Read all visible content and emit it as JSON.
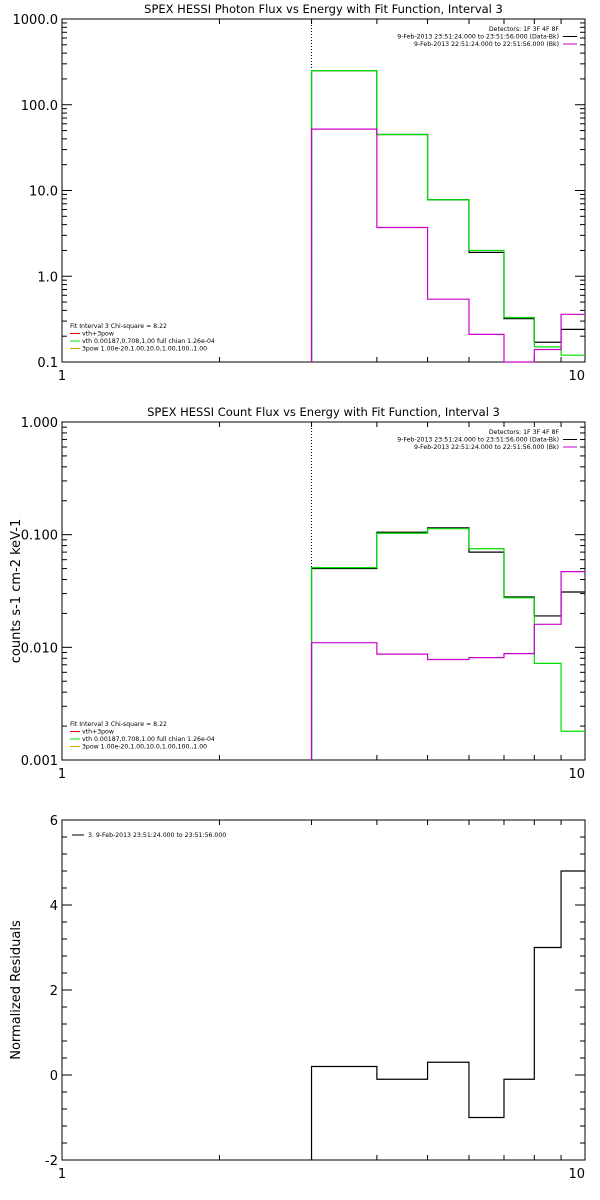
{
  "colors": {
    "black": "#000000",
    "green": "#00dd00",
    "magenta": "#cc00cc",
    "red": "#ee0000",
    "orange": "#ccaa00"
  },
  "chart_data": [
    {
      "type": "line",
      "step": true,
      "title": "SPEX HESSI Photon Flux vs Energy with Fit Function, Interval 3",
      "xscale": "log",
      "yscale": "log",
      "xlim": [
        1,
        10
      ],
      "ylim": [
        0.1,
        1000
      ],
      "xticks": [
        1,
        10
      ],
      "xtick_labels": [
        "1",
        "10"
      ],
      "yticks": [
        0.1,
        1,
        10,
        100,
        1000
      ],
      "ytick_labels": [
        "0.1",
        "1.0",
        "10.0",
        "100.0",
        "1000.0"
      ],
      "vline_x": 3.0,
      "bin_edges": [
        3.0,
        4.0,
        5.0,
        6.0,
        7.0,
        8.0,
        9.0,
        10.0
      ],
      "series": [
        {
          "color": "#000000",
          "values": [
            250,
            45,
            7.8,
            1.9,
            0.32,
            0.17,
            0.24
          ]
        },
        {
          "color": "#00dd00",
          "values": [
            250,
            45,
            7.8,
            2.0,
            0.33,
            0.15,
            0.12
          ]
        },
        {
          "color": "#cc00cc",
          "values": [
            52,
            3.7,
            0.54,
            0.21,
            0.1,
            0.14,
            0.36
          ]
        }
      ],
      "legend_top_right": {
        "lines": [
          {
            "text": "Detectors: 1F 3F 4F 8F",
            "color": ""
          },
          {
            "text": "9-Feb-2013 23:51:24.000 to 23:51:56.000 (Data-Bk)",
            "color": "#000000"
          },
          {
            "text": "9-Feb-2013 22:51:24.000 to 22:51:56.000 (Bk)",
            "color": "#cc00cc"
          }
        ]
      },
      "legend_bottom_left": {
        "lines": [
          {
            "text": "Fit Interval 3   Chi-square = 8.22",
            "color": ""
          },
          {
            "text": "vth+3pow",
            "color": "#ee0000"
          },
          {
            "text": "vth 0.00187,0.708,1.00  full chian 1.26e-04",
            "color": "#00dd00"
          },
          {
            "text": "3pow 1.00e-20,1.00,10.0,1.00,100.,1.00",
            "color": "#ccaa00"
          }
        ]
      }
    },
    {
      "type": "line",
      "step": true,
      "title": "SPEX HESSI Count Flux vs Energy with Fit Function, Interval 3",
      "ylabel": "counts s-1 cm-2 keV-1",
      "xscale": "log",
      "yscale": "log",
      "xlim": [
        1,
        10
      ],
      "ylim": [
        0.001,
        1
      ],
      "xticks": [
        1,
        10
      ],
      "xtick_labels": [
        "1",
        "10"
      ],
      "yticks": [
        0.001,
        0.01,
        0.1,
        1
      ],
      "ytick_labels": [
        "0.001",
        "0.010",
        "0.100",
        "1.000"
      ],
      "vline_x": 3.0,
      "bin_edges": [
        3.0,
        4.0,
        5.0,
        6.0,
        7.0,
        8.0,
        9.0,
        10.0
      ],
      "series": [
        {
          "color": "#000000",
          "values": [
            0.05,
            0.105,
            0.115,
            0.07,
            0.028,
            0.019,
            0.031
          ]
        },
        {
          "color": "#00dd00",
          "values": [
            0.051,
            0.103,
            0.113,
            0.075,
            0.0275,
            0.0072,
            0.0018
          ]
        },
        {
          "color": "#cc00cc",
          "values": [
            0.011,
            0.0087,
            0.0078,
            0.0081,
            0.0088,
            0.016,
            0.047
          ]
        }
      ],
      "legend_top_right": {
        "lines": [
          {
            "text": "Detectors: 1F 3F 4F 8F",
            "color": ""
          },
          {
            "text": "9-Feb-2013 23:51:24.000 to 23:51:56.000 (Data-Bk)",
            "color": "#000000"
          },
          {
            "text": "9-Feb-2013 22:51:24.000 to 22:51:56.000 (Bk)",
            "color": "#cc00cc"
          }
        ]
      },
      "legend_bottom_left": {
        "lines": [
          {
            "text": "Fit Interval 3   Chi-square = 8.22",
            "color": ""
          },
          {
            "text": "vth+3pow",
            "color": "#ee0000"
          },
          {
            "text": "vth 0.00187,0.708,1.00  full chian 1.26e-04",
            "color": "#00dd00"
          },
          {
            "text": "3pow 1.00e-20,1.00,10.0,1.00,100.,1.00",
            "color": "#ccaa00"
          }
        ]
      }
    },
    {
      "type": "line",
      "step": true,
      "title": "",
      "ylabel": "Normalized Residuals",
      "xscale": "log",
      "yscale": "linear",
      "xlim": [
        1,
        10
      ],
      "ylim": [
        -2,
        6
      ],
      "xticks": [
        1,
        10
      ],
      "xtick_labels": [
        "1",
        "10"
      ],
      "yticks": [
        -2,
        0,
        2,
        4,
        6
      ],
      "ytick_labels": [
        "-2",
        "0",
        "2",
        "4",
        "6"
      ],
      "bin_edges": [
        3.0,
        4.0,
        5.0,
        6.0,
        7.0,
        8.0,
        9.0,
        10.0
      ],
      "series": [
        {
          "color": "#000000",
          "values": [
            0.2,
            -0.1,
            0.3,
            -1.0,
            -0.1,
            3.0,
            4.8
          ]
        }
      ],
      "legend_top_left": {
        "lines": [
          {
            "text": "3.  9-Feb-2013 23:51:24.000 to 23:51:56.000",
            "color": "#000000"
          }
        ]
      }
    }
  ]
}
